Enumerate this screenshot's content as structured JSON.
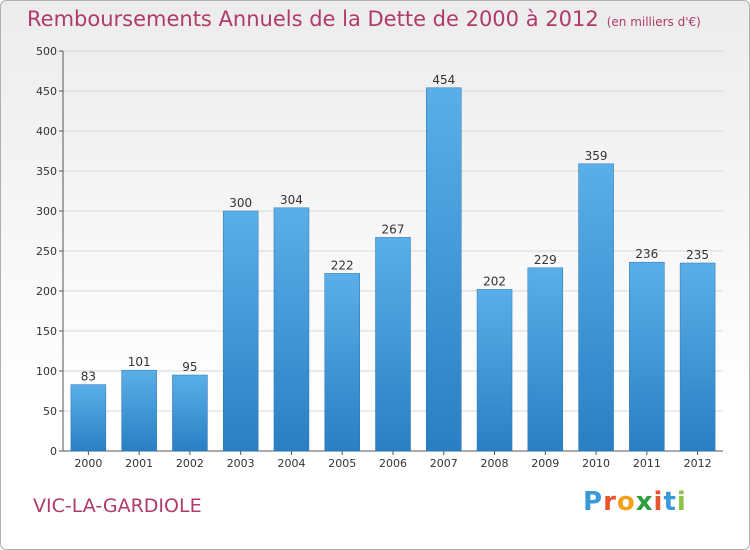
{
  "header": {
    "title": "Remboursements Annuels de la Dette de 2000 à 2012",
    "unit": "(en milliers d'€)"
  },
  "footer": {
    "place": "VIC-LA-GARDIOLE",
    "logo": {
      "letters": [
        "P",
        "r",
        "o",
        "x",
        "i",
        "t",
        "i"
      ],
      "colors": [
        "#3a9ad9",
        "#e8542d",
        "#f3a31a",
        "#2e9e3e",
        "#e8542d",
        "#3a9ad9",
        "#8bc34a"
      ]
    }
  },
  "chart_data": {
    "type": "bar",
    "title": "Remboursements Annuels de la Dette de 2000 à 2012",
    "xlabel": "",
    "ylabel": "",
    "categories": [
      "2000",
      "2001",
      "2002",
      "2003",
      "2004",
      "2005",
      "2006",
      "2007",
      "2008",
      "2009",
      "2010",
      "2011",
      "2012"
    ],
    "values": [
      83,
      101,
      95,
      300,
      304,
      222,
      267,
      454,
      202,
      229,
      359,
      236,
      235
    ],
    "ylim": [
      0,
      500
    ],
    "yticks": [
      0,
      50,
      100,
      150,
      200,
      250,
      300,
      350,
      400,
      450,
      500
    ],
    "grid": true,
    "bar_color": "#3d8fd6"
  }
}
